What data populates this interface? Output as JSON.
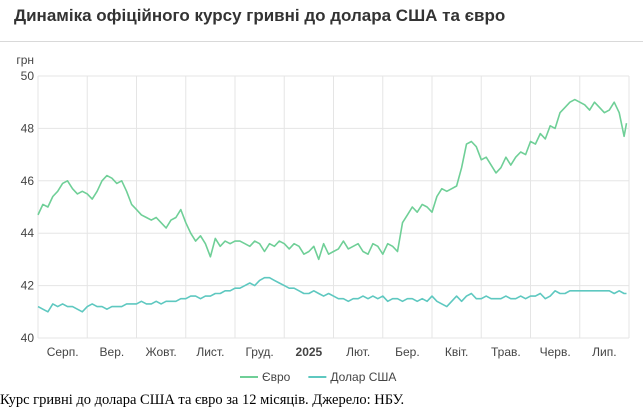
{
  "title": "Динаміка офіційного курсу гривні до долара США та євро",
  "caption": "Курс гривні до долара США та євро за 12 місяців. Джерело: НБУ.",
  "colors": {
    "eur": "#6fcf97",
    "usd": "#5ec8c0",
    "grid": "#e5e5e5",
    "text": "#444444"
  },
  "chart_data": {
    "type": "line",
    "ylabel": "грн",
    "ylim": [
      40,
      50
    ],
    "yticks": [
      40,
      42,
      44,
      46,
      48,
      50
    ],
    "xlim": [
      0,
      12
    ],
    "x_tick_labels": [
      {
        "pos": 0.5,
        "label": "Серп.",
        "bold": false
      },
      {
        "pos": 1.5,
        "label": "Вер.",
        "bold": false
      },
      {
        "pos": 2.5,
        "label": "Жовт.",
        "bold": false
      },
      {
        "pos": 3.5,
        "label": "Лист.",
        "bold": false
      },
      {
        "pos": 4.5,
        "label": "Груд.",
        "bold": false
      },
      {
        "pos": 5.5,
        "label": "2025",
        "bold": true
      },
      {
        "pos": 6.5,
        "label": "Лют.",
        "bold": false
      },
      {
        "pos": 7.5,
        "label": "Бер.",
        "bold": false
      },
      {
        "pos": 8.5,
        "label": "Квіт.",
        "bold": false
      },
      {
        "pos": 9.5,
        "label": "Трав.",
        "bold": false
      },
      {
        "pos": 10.5,
        "label": "Черв.",
        "bold": false
      },
      {
        "pos": 11.5,
        "label": "Лип.",
        "bold": false
      }
    ],
    "grid_x": [
      0,
      1,
      2,
      3,
      4,
      5,
      6,
      7,
      8,
      9,
      10,
      11,
      12
    ],
    "legend": {
      "placement": "bottom-center"
    },
    "series": [
      {
        "name": "Євро",
        "key": "eur",
        "x": [
          0,
          0.1,
          0.2,
          0.3,
          0.4,
          0.5,
          0.6,
          0.7,
          0.8,
          0.9,
          1.0,
          1.1,
          1.2,
          1.3,
          1.4,
          1.5,
          1.6,
          1.7,
          1.8,
          1.9,
          2.0,
          2.1,
          2.2,
          2.3,
          2.4,
          2.5,
          2.6,
          2.7,
          2.8,
          2.9,
          3.0,
          3.1,
          3.2,
          3.3,
          3.4,
          3.5,
          3.6,
          3.7,
          3.8,
          3.9,
          4.0,
          4.1,
          4.2,
          4.3,
          4.4,
          4.5,
          4.6,
          4.7,
          4.8,
          4.9,
          5.0,
          5.1,
          5.2,
          5.3,
          5.4,
          5.5,
          5.6,
          5.7,
          5.8,
          5.9,
          6.0,
          6.1,
          6.2,
          6.3,
          6.4,
          6.5,
          6.6,
          6.7,
          6.8,
          6.9,
          7.0,
          7.1,
          7.2,
          7.3,
          7.4,
          7.5,
          7.6,
          7.7,
          7.8,
          7.9,
          8.0,
          8.1,
          8.2,
          8.3,
          8.4,
          8.5,
          8.6,
          8.7,
          8.8,
          8.9,
          9.0,
          9.1,
          9.2,
          9.3,
          9.4,
          9.5,
          9.6,
          9.7,
          9.8,
          9.9,
          10.0,
          10.1,
          10.2,
          10.3,
          10.4,
          10.5,
          10.6,
          10.7,
          10.8,
          10.9,
          11.0,
          11.1,
          11.2,
          11.3,
          11.4,
          11.5,
          11.6,
          11.7,
          11.8,
          11.9,
          11.95
        ],
        "y": [
          44.7,
          45.1,
          45.0,
          45.4,
          45.6,
          45.9,
          46.0,
          45.7,
          45.5,
          45.6,
          45.5,
          45.3,
          45.6,
          46.0,
          46.2,
          46.1,
          45.9,
          46.0,
          45.6,
          45.1,
          44.9,
          44.7,
          44.6,
          44.5,
          44.6,
          44.4,
          44.2,
          44.5,
          44.6,
          44.9,
          44.4,
          44.0,
          43.7,
          43.9,
          43.6,
          43.1,
          43.8,
          43.5,
          43.7,
          43.6,
          43.7,
          43.7,
          43.6,
          43.5,
          43.7,
          43.6,
          43.3,
          43.6,
          43.5,
          43.7,
          43.6,
          43.4,
          43.6,
          43.5,
          43.2,
          43.3,
          43.5,
          43.0,
          43.6,
          43.2,
          43.3,
          43.4,
          43.7,
          43.4,
          43.5,
          43.6,
          43.3,
          43.2,
          43.6,
          43.5,
          43.2,
          43.6,
          43.5,
          43.3,
          44.4,
          44.7,
          45.0,
          44.8,
          45.1,
          45.0,
          44.8,
          45.4,
          45.7,
          45.6,
          45.7,
          45.8,
          46.5,
          47.4,
          47.5,
          47.3,
          46.8,
          46.9,
          46.6,
          46.3,
          46.5,
          46.9,
          46.6,
          46.9,
          47.1,
          47.0,
          47.5,
          47.4,
          47.8,
          47.6,
          48.1,
          48.0,
          48.6,
          48.8,
          49.0,
          49.1,
          49.0,
          48.9,
          48.7,
          49.0,
          48.8,
          48.6,
          48.7,
          49.0,
          48.6,
          47.7,
          48.2
        ],
        "color_key": "eur"
      },
      {
        "name": "Долар США",
        "key": "usd",
        "x": [
          0,
          0.1,
          0.2,
          0.3,
          0.4,
          0.5,
          0.6,
          0.7,
          0.8,
          0.9,
          1.0,
          1.1,
          1.2,
          1.3,
          1.4,
          1.5,
          1.6,
          1.7,
          1.8,
          1.9,
          2.0,
          2.1,
          2.2,
          2.3,
          2.4,
          2.5,
          2.6,
          2.7,
          2.8,
          2.9,
          3.0,
          3.1,
          3.2,
          3.3,
          3.4,
          3.5,
          3.6,
          3.7,
          3.8,
          3.9,
          4.0,
          4.1,
          4.2,
          4.3,
          4.4,
          4.5,
          4.6,
          4.7,
          4.8,
          4.9,
          5.0,
          5.1,
          5.2,
          5.3,
          5.4,
          5.5,
          5.6,
          5.7,
          5.8,
          5.9,
          6.0,
          6.1,
          6.2,
          6.3,
          6.4,
          6.5,
          6.6,
          6.7,
          6.8,
          6.9,
          7.0,
          7.1,
          7.2,
          7.3,
          7.4,
          7.5,
          7.6,
          7.7,
          7.8,
          7.9,
          8.0,
          8.1,
          8.2,
          8.3,
          8.4,
          8.5,
          8.6,
          8.7,
          8.8,
          8.9,
          9.0,
          9.1,
          9.2,
          9.3,
          9.4,
          9.5,
          9.6,
          9.7,
          9.8,
          9.9,
          10.0,
          10.1,
          10.2,
          10.3,
          10.4,
          10.5,
          10.6,
          10.7,
          10.8,
          10.9,
          11.0,
          11.1,
          11.2,
          11.3,
          11.4,
          11.5,
          11.6,
          11.7,
          11.8,
          11.9,
          11.95
        ],
        "y": [
          41.2,
          41.1,
          41.0,
          41.3,
          41.2,
          41.3,
          41.2,
          41.2,
          41.1,
          41.0,
          41.2,
          41.3,
          41.2,
          41.2,
          41.1,
          41.2,
          41.2,
          41.2,
          41.3,
          41.3,
          41.3,
          41.4,
          41.3,
          41.3,
          41.4,
          41.3,
          41.4,
          41.4,
          41.4,
          41.5,
          41.5,
          41.6,
          41.6,
          41.5,
          41.6,
          41.6,
          41.7,
          41.7,
          41.8,
          41.8,
          41.9,
          41.9,
          42.0,
          42.1,
          42.0,
          42.2,
          42.3,
          42.3,
          42.2,
          42.1,
          42.0,
          41.9,
          41.9,
          41.8,
          41.7,
          41.7,
          41.8,
          41.7,
          41.6,
          41.7,
          41.6,
          41.5,
          41.5,
          41.4,
          41.5,
          41.5,
          41.6,
          41.5,
          41.6,
          41.5,
          41.6,
          41.4,
          41.5,
          41.5,
          41.4,
          41.5,
          41.5,
          41.4,
          41.5,
          41.4,
          41.6,
          41.4,
          41.3,
          41.2,
          41.4,
          41.6,
          41.4,
          41.6,
          41.7,
          41.5,
          41.5,
          41.6,
          41.5,
          41.5,
          41.5,
          41.6,
          41.5,
          41.5,
          41.6,
          41.5,
          41.6,
          41.6,
          41.7,
          41.5,
          41.6,
          41.8,
          41.7,
          41.7,
          41.8,
          41.8,
          41.8,
          41.8,
          41.8,
          41.8,
          41.8,
          41.8,
          41.8,
          41.7,
          41.8,
          41.7,
          41.7
        ],
        "color_key": "usd"
      }
    ]
  }
}
